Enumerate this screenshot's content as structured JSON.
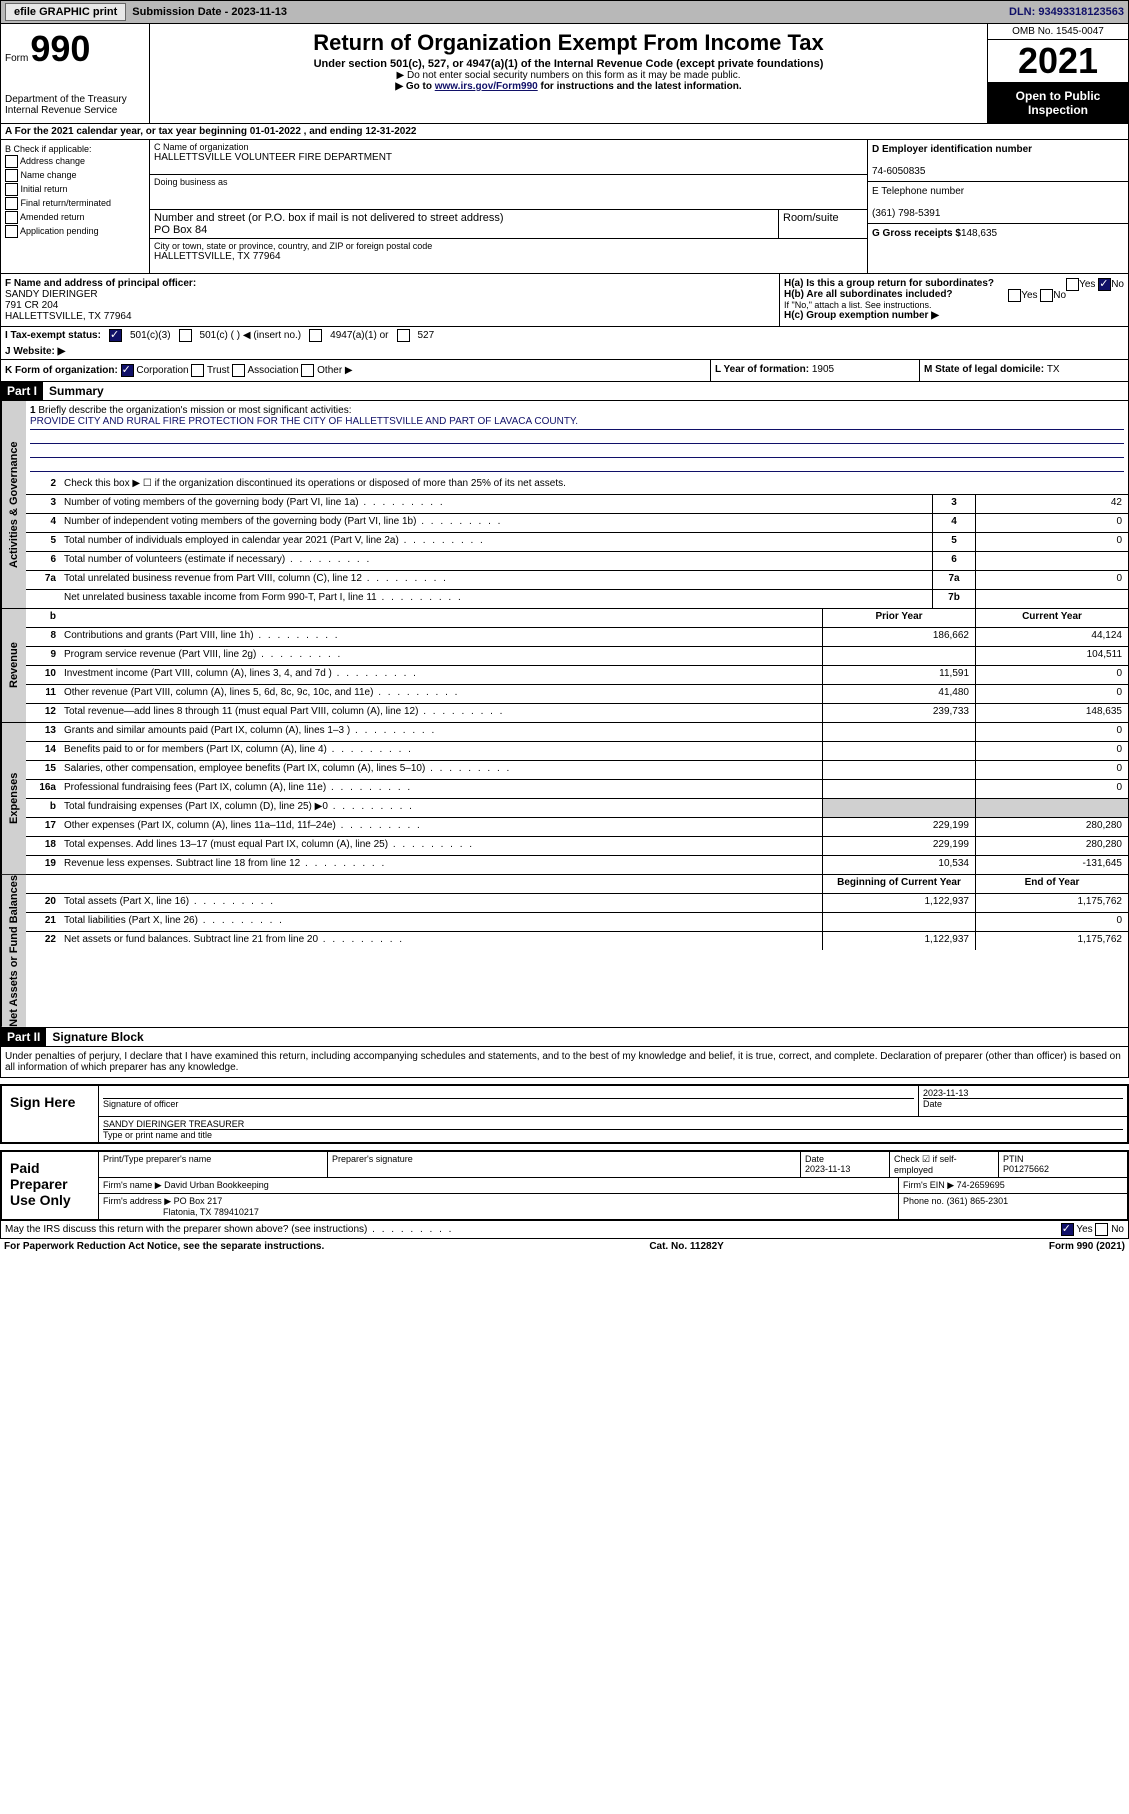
{
  "topbar": {
    "efile": "efile GRAPHIC print",
    "sub_label": "Submission Date - ",
    "sub_date": "2023-11-13",
    "dln": "DLN: 93493318123563"
  },
  "header": {
    "form_word": "Form",
    "form_num": "990",
    "dept": "Department of the Treasury\nInternal Revenue Service",
    "title": "Return of Organization Exempt From Income Tax",
    "sub": "Under section 501(c), 527, or 4947(a)(1) of the Internal Revenue Code (except private foundations)",
    "note1": "▶ Do not enter social security numbers on this form as it may be made public.",
    "note2_pre": "▶ Go to ",
    "note2_link": "www.irs.gov/Form990",
    "note2_post": " for instructions and the latest information.",
    "omb": "OMB No. 1545-0047",
    "year": "2021",
    "inspect": "Open to Public Inspection"
  },
  "row_a": "A For the 2021 calendar year, or tax year beginning 01-01-2022  , and ending 12-31-2022",
  "col_b": {
    "label": "B Check if applicable:",
    "items": [
      "Address change",
      "Name change",
      "Initial return",
      "Final return/terminated",
      "Amended return",
      "Application pending"
    ]
  },
  "box_c": {
    "label_name": "C Name of organization",
    "name": "HALLETTSVILLE VOLUNTEER FIRE DEPARTMENT",
    "dba_label": "Doing business as",
    "addr_label": "Number and street (or P.O. box if mail is not delivered to street address)",
    "room_label": "Room/suite",
    "addr": "PO Box 84",
    "city_label": "City or town, state or province, country, and ZIP or foreign postal code",
    "city": "HALLETTSVILLE, TX  77964"
  },
  "col_de": {
    "d_label": "D Employer identification number",
    "d_val": "74-6050835",
    "e_label": "E Telephone number",
    "e_val": "(361) 798-5391",
    "g_label": "G Gross receipts $",
    "g_val": "148,635"
  },
  "row_f": {
    "label": "F Name and address of principal officer:",
    "name": "SANDY DIERINGER",
    "addr1": "791 CR 204",
    "addr2": "HALLETTSVILLE, TX  77964"
  },
  "row_h": {
    "ha": "H(a)  Is this a group return for subordinates?",
    "hb": "H(b)  Are all subordinates included?",
    "hb_note": "If \"No,\" attach a list. See instructions.",
    "hc": "H(c)  Group exemption number ▶",
    "yes": "Yes",
    "no": "No"
  },
  "row_i": {
    "label": "I  Tax-exempt status:",
    "o1": "501(c)(3)",
    "o2": "501(c) (  ) ◀ (insert no.)",
    "o3": "4947(a)(1) or",
    "o4": "527"
  },
  "row_j": "J  Website: ▶",
  "row_k": {
    "label": "K Form of organization:",
    "o1": "Corporation",
    "o2": "Trust",
    "o3": "Association",
    "o4": "Other ▶"
  },
  "row_l": {
    "label": "L Year of formation: ",
    "val": "1905"
  },
  "row_m": {
    "label": "M State of legal domicile: ",
    "val": "TX"
  },
  "part1": {
    "tag": "Part I",
    "title": "Summary"
  },
  "summary": {
    "q1": "Briefly describe the organization's mission or most significant activities:",
    "mission": "PROVIDE CITY AND RURAL FIRE PROTECTION FOR THE CITY OF HALLETTSVILLE AND PART OF LAVACA COUNTY.",
    "q2": "Check this box ▶ ☐  if the organization discontinued its operations or disposed of more than 25% of its net assets.",
    "lines_gov": [
      {
        "n": "3",
        "d": "Number of voting members of the governing body (Part VI, line 1a)",
        "k": "3",
        "v": "42"
      },
      {
        "n": "4",
        "d": "Number of independent voting members of the governing body (Part VI, line 1b)",
        "k": "4",
        "v": "0"
      },
      {
        "n": "5",
        "d": "Total number of individuals employed in calendar year 2021 (Part V, line 2a)",
        "k": "5",
        "v": "0"
      },
      {
        "n": "6",
        "d": "Total number of volunteers (estimate if necessary)",
        "k": "6",
        "v": ""
      },
      {
        "n": "7a",
        "d": "Total unrelated business revenue from Part VIII, column (C), line 12",
        "k": "7a",
        "v": "0"
      },
      {
        "n": "",
        "d": "Net unrelated business taxable income from Form 990-T, Part I, line 11",
        "k": "7b",
        "v": ""
      }
    ],
    "col_hdr_b": "b",
    "col_hdr_prior": "Prior Year",
    "col_hdr_curr": "Current Year",
    "lines_rev": [
      {
        "n": "8",
        "d": "Contributions and grants (Part VIII, line 1h)",
        "p": "186,662",
        "c": "44,124"
      },
      {
        "n": "9",
        "d": "Program service revenue (Part VIII, line 2g)",
        "p": "",
        "c": "104,511"
      },
      {
        "n": "10",
        "d": "Investment income (Part VIII, column (A), lines 3, 4, and 7d )",
        "p": "11,591",
        "c": "0"
      },
      {
        "n": "11",
        "d": "Other revenue (Part VIII, column (A), lines 5, 6d, 8c, 9c, 10c, and 11e)",
        "p": "41,480",
        "c": "0"
      },
      {
        "n": "12",
        "d": "Total revenue—add lines 8 through 11 (must equal Part VIII, column (A), line 12)",
        "p": "239,733",
        "c": "148,635"
      }
    ],
    "lines_exp": [
      {
        "n": "13",
        "d": "Grants and similar amounts paid (Part IX, column (A), lines 1–3 )",
        "p": "",
        "c": "0"
      },
      {
        "n": "14",
        "d": "Benefits paid to or for members (Part IX, column (A), line 4)",
        "p": "",
        "c": "0"
      },
      {
        "n": "15",
        "d": "Salaries, other compensation, employee benefits (Part IX, column (A), lines 5–10)",
        "p": "",
        "c": "0"
      },
      {
        "n": "16a",
        "d": "Professional fundraising fees (Part IX, column (A), line 11e)",
        "p": "",
        "c": "0"
      },
      {
        "n": "b",
        "d": "Total fundraising expenses (Part IX, column (D), line 25) ▶0",
        "p": "grey",
        "c": "grey"
      },
      {
        "n": "17",
        "d": "Other expenses (Part IX, column (A), lines 11a–11d, 11f–24e)",
        "p": "229,199",
        "c": "280,280"
      },
      {
        "n": "18",
        "d": "Total expenses. Add lines 13–17 (must equal Part IX, column (A), line 25)",
        "p": "229,199",
        "c": "280,280"
      },
      {
        "n": "19",
        "d": "Revenue less expenses. Subtract line 18 from line 12",
        "p": "10,534",
        "c": "-131,645"
      }
    ],
    "col_hdr_beg": "Beginning of Current Year",
    "col_hdr_end": "End of Year",
    "lines_net": [
      {
        "n": "20",
        "d": "Total assets (Part X, line 16)",
        "p": "1,122,937",
        "c": "1,175,762"
      },
      {
        "n": "21",
        "d": "Total liabilities (Part X, line 26)",
        "p": "",
        "c": "0"
      },
      {
        "n": "22",
        "d": "Net assets or fund balances. Subtract line 21 from line 20",
        "p": "1,122,937",
        "c": "1,175,762"
      }
    ],
    "side1": "Activities & Governance",
    "side2": "Revenue",
    "side3": "Expenses",
    "side4": "Net Assets or Fund Balances"
  },
  "part2": {
    "tag": "Part II",
    "title": "Signature Block"
  },
  "sig": {
    "decl": "Under penalties of perjury, I declare that I have examined this return, including accompanying schedules and statements, and to the best of my knowledge and belief, it is true, correct, and complete. Declaration of preparer (other than officer) is based on all information of which preparer has any knowledge.",
    "sign_here": "Sign Here",
    "sig_officer": "Signature of officer",
    "date_label": "Date",
    "date_val": "2023-11-13",
    "name_title": "SANDY DIERINGER  TREASURER",
    "name_label": "Type or print name and title",
    "paid": "Paid Preparer Use Only",
    "prep_name_label": "Print/Type preparer's name",
    "prep_sig_label": "Preparer's signature",
    "prep_date_label": "Date",
    "prep_date": "2023-11-13",
    "check_if": "Check ☑ if self-employed",
    "ptin_label": "PTIN",
    "ptin": "P01275662",
    "firm_name_label": "Firm's name    ▶",
    "firm_name": "David Urban Bookkeeping",
    "firm_ein_label": "Firm's EIN ▶",
    "firm_ein": "74-2659695",
    "firm_addr_label": "Firm's address ▶",
    "firm_addr1": "PO Box 217",
    "firm_addr2": "Flatonia, TX  789410217",
    "phone_label": "Phone no.",
    "phone": "(361) 865-2301",
    "may_irs": "May the IRS discuss this return with the preparer shown above? (see instructions)",
    "yes": "Yes",
    "no": "No"
  },
  "footer": {
    "left": "For Paperwork Reduction Act Notice, see the separate instructions.",
    "mid": "Cat. No. 11282Y",
    "right": "Form 990 (2021)"
  },
  "colors": {
    "link": "#101068",
    "grey": "#d0d0d0"
  }
}
